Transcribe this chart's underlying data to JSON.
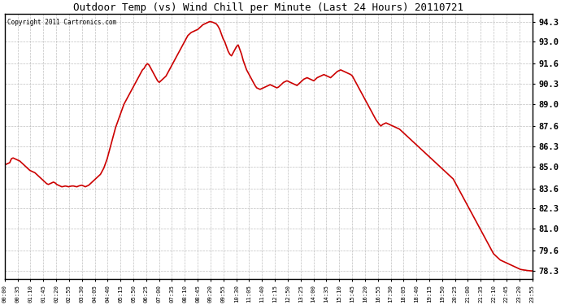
{
  "title": "Outdoor Temp (vs) Wind Chill per Minute (Last 24 Hours) 20110721",
  "copyright": "Copyright 2011 Cartronics.com",
  "line_color": "#cc0000",
  "bg_color": "#ffffff",
  "grid_color": "#b0b0b0",
  "yticks": [
    78.3,
    79.6,
    81.0,
    82.3,
    83.6,
    85.0,
    86.3,
    87.6,
    89.0,
    90.3,
    91.6,
    93.0,
    94.3
  ],
  "ymin": 77.8,
  "ymax": 94.8,
  "xtick_labels": [
    "00:00",
    "00:35",
    "01:10",
    "01:45",
    "02:20",
    "02:55",
    "03:30",
    "04:05",
    "04:40",
    "05:15",
    "05:50",
    "06:25",
    "07:00",
    "07:35",
    "08:10",
    "08:45",
    "09:20",
    "09:55",
    "10:30",
    "11:05",
    "11:40",
    "12:15",
    "12:50",
    "13:25",
    "14:00",
    "14:35",
    "15:10",
    "15:45",
    "16:20",
    "16:55",
    "17:30",
    "18:05",
    "18:40",
    "19:15",
    "19:50",
    "20:25",
    "21:00",
    "21:35",
    "22:10",
    "22:45",
    "23:20",
    "23:55"
  ],
  "curve": [
    85.1,
    85.15,
    85.2,
    85.25,
    85.5,
    85.55,
    85.5,
    85.45,
    85.4,
    85.35,
    85.25,
    85.15,
    85.05,
    84.95,
    84.85,
    84.75,
    84.7,
    84.65,
    84.6,
    84.5,
    84.4,
    84.3,
    84.2,
    84.1,
    84.0,
    83.9,
    83.85,
    83.9,
    83.95,
    84.0,
    83.95,
    83.85,
    83.8,
    83.75,
    83.7,
    83.72,
    83.75,
    83.73,
    83.7,
    83.73,
    83.75,
    83.75,
    83.72,
    83.7,
    83.75,
    83.78,
    83.8,
    83.75,
    83.7,
    83.75,
    83.8,
    83.9,
    84.0,
    84.1,
    84.2,
    84.3,
    84.4,
    84.5,
    84.7,
    84.9,
    85.2,
    85.5,
    85.9,
    86.3,
    86.7,
    87.1,
    87.5,
    87.8,
    88.1,
    88.4,
    88.7,
    89.0,
    89.2,
    89.4,
    89.6,
    89.8,
    90.0,
    90.2,
    90.4,
    90.6,
    90.8,
    91.0,
    91.2,
    91.3,
    91.5,
    91.6,
    91.5,
    91.3,
    91.1,
    90.9,
    90.7,
    90.5,
    90.4,
    90.5,
    90.6,
    90.7,
    90.8,
    91.0,
    91.2,
    91.4,
    91.6,
    91.8,
    92.0,
    92.2,
    92.4,
    92.6,
    92.8,
    93.0,
    93.2,
    93.4,
    93.5,
    93.6,
    93.65,
    93.7,
    93.75,
    93.8,
    93.9,
    94.0,
    94.1,
    94.15,
    94.2,
    94.25,
    94.3,
    94.28,
    94.25,
    94.2,
    94.15,
    94.0,
    93.8,
    93.5,
    93.2,
    93.0,
    92.7,
    92.4,
    92.2,
    92.1,
    92.3,
    92.5,
    92.7,
    92.8,
    92.5,
    92.2,
    91.8,
    91.5,
    91.2,
    91.0,
    90.8,
    90.6,
    90.4,
    90.2,
    90.05,
    90.0,
    89.95,
    90.0,
    90.05,
    90.1,
    90.15,
    90.2,
    90.25,
    90.2,
    90.15,
    90.1,
    90.05,
    90.1,
    90.2,
    90.3,
    90.4,
    90.45,
    90.5,
    90.45,
    90.4,
    90.35,
    90.3,
    90.25,
    90.2,
    90.3,
    90.4,
    90.5,
    90.6,
    90.65,
    90.7,
    90.65,
    90.6,
    90.55,
    90.5,
    90.6,
    90.7,
    90.75,
    90.8,
    90.85,
    90.9,
    90.85,
    90.8,
    90.75,
    90.7,
    90.8,
    90.9,
    91.0,
    91.1,
    91.15,
    91.2,
    91.15,
    91.1,
    91.05,
    91.0,
    90.95,
    90.9,
    90.8,
    90.6,
    90.4,
    90.2,
    90.0,
    89.8,
    89.6,
    89.4,
    89.2,
    89.0,
    88.8,
    88.6,
    88.4,
    88.2,
    88.0,
    87.85,
    87.7,
    87.6,
    87.7,
    87.75,
    87.8,
    87.75,
    87.7,
    87.65,
    87.6,
    87.55,
    87.5,
    87.45,
    87.4,
    87.3,
    87.2,
    87.1,
    87.0,
    86.9,
    86.8,
    86.7,
    86.6,
    86.5,
    86.4,
    86.3,
    86.2,
    86.1,
    86.0,
    85.9,
    85.8,
    85.7,
    85.6,
    85.5,
    85.4,
    85.3,
    85.2,
    85.1,
    85.0,
    84.9,
    84.8,
    84.7,
    84.6,
    84.5,
    84.4,
    84.3,
    84.2,
    84.0,
    83.8,
    83.6,
    83.4,
    83.2,
    83.0,
    82.8,
    82.6,
    82.4,
    82.2,
    82.0,
    81.8,
    81.6,
    81.4,
    81.2,
    81.0,
    80.8,
    80.6,
    80.4,
    80.2,
    80.0,
    79.8,
    79.6,
    79.4,
    79.3,
    79.2,
    79.1,
    79.0,
    78.95,
    78.9,
    78.85,
    78.8,
    78.75,
    78.7,
    78.65,
    78.6,
    78.55,
    78.5,
    78.45,
    78.4,
    78.38,
    78.36,
    78.35,
    78.33,
    78.32,
    78.31,
    78.3
  ]
}
